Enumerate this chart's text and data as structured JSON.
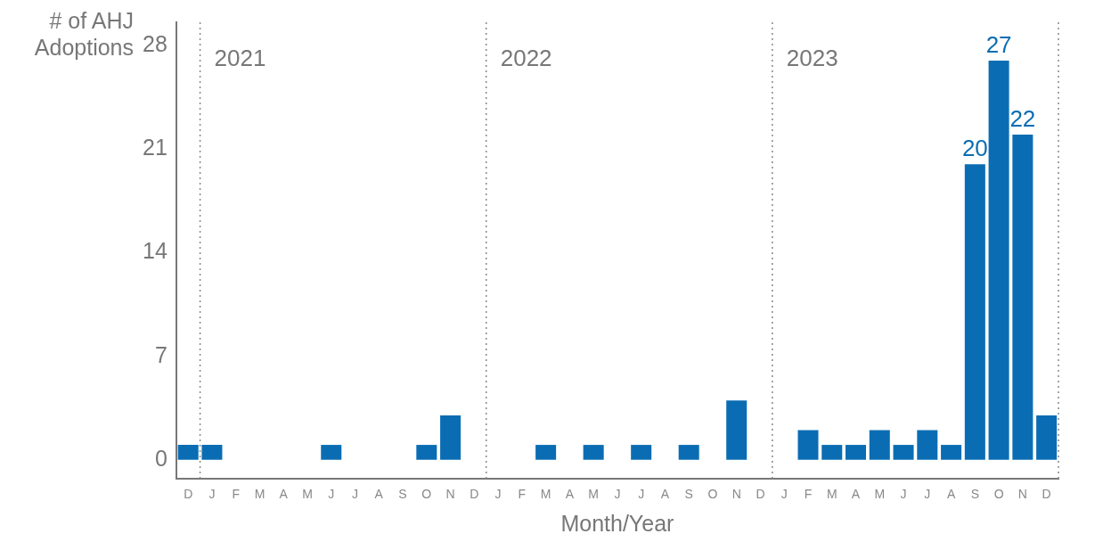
{
  "chart_data": {
    "type": "bar",
    "xlabel": "Month/Year",
    "ylabel": "# of AHJ Adoptions",
    "categories": [
      "D",
      "J",
      "F",
      "M",
      "A",
      "M",
      "J",
      "J",
      "A",
      "S",
      "O",
      "N",
      "D",
      "J",
      "F",
      "M",
      "A",
      "M",
      "J",
      "J",
      "A",
      "S",
      "O",
      "N",
      "D",
      "J",
      "F",
      "M",
      "A",
      "M",
      "J",
      "J",
      "A",
      "S",
      "O",
      "N",
      "D"
    ],
    "values": [
      1,
      1,
      0,
      0,
      0,
      0,
      1,
      0,
      0,
      0,
      1,
      3,
      0,
      0,
      0,
      1,
      0,
      1,
      0,
      1,
      0,
      1,
      0,
      4,
      0,
      0,
      2,
      1,
      1,
      2,
      1,
      2,
      1,
      20,
      27,
      22,
      3
    ],
    "value_labels": [
      null,
      null,
      null,
      null,
      null,
      null,
      null,
      null,
      null,
      null,
      null,
      null,
      null,
      null,
      null,
      null,
      null,
      null,
      null,
      null,
      null,
      null,
      null,
      null,
      null,
      null,
      null,
      null,
      null,
      null,
      null,
      null,
      null,
      "20",
      "27",
      "22",
      null
    ],
    "color": "#0a6db3",
    "ylim": [
      -1.3,
      29.6
    ],
    "yticks": [
      0,
      7,
      14,
      21,
      28
    ],
    "grid": false,
    "legend": false,
    "annotations": [
      "2021",
      "2022",
      "2023"
    ]
  }
}
